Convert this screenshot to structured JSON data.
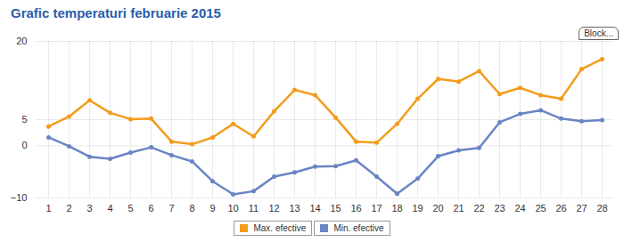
{
  "chart_data": {
    "type": "line",
    "title": "Grafic temperaturi februarie 2015",
    "annotations": [
      "Block..."
    ],
    "categories": [
      "1",
      "2",
      "3",
      "4",
      "5",
      "6",
      "7",
      "8",
      "9",
      "10",
      "11",
      "12",
      "13",
      "14",
      "15",
      "16",
      "17",
      "18",
      "19",
      "20",
      "21",
      "22",
      "23",
      "24",
      "25",
      "26",
      "27",
      "28"
    ],
    "series": [
      {
        "name": "Max. efective",
        "color": "#f39c1c",
        "marker": "circle",
        "values": [
          3.7,
          5.6,
          8.7,
          6.3,
          5.1,
          5.2,
          0.8,
          0.3,
          1.6,
          4.2,
          1.8,
          6.6,
          10.7,
          9.7,
          5.4,
          0.8,
          0.6,
          4.2,
          9.0,
          12.8,
          12.3,
          14.3,
          9.9,
          11.1,
          9.7,
          9.0,
          14.7,
          16.6
        ]
      },
      {
        "name": "Min. efective",
        "color": "#6a85c4",
        "marker": "circle",
        "values": [
          1.6,
          -0.1,
          -2.1,
          -2.5,
          -1.3,
          -0.3,
          -1.8,
          -3.0,
          -6.8,
          -9.3,
          -8.7,
          -5.9,
          -5.1,
          -4.0,
          -3.9,
          -2.8,
          -5.9,
          -9.2,
          -6.3,
          -2.0,
          -0.9,
          -0.4,
          4.5,
          6.1,
          6.8,
          5.2,
          4.7,
          4.9
        ]
      }
    ],
    "ylim": [
      -10,
      20
    ],
    "yticks": [
      -10,
      0,
      5,
      20
    ],
    "grid": true,
    "legend": "bottom"
  }
}
